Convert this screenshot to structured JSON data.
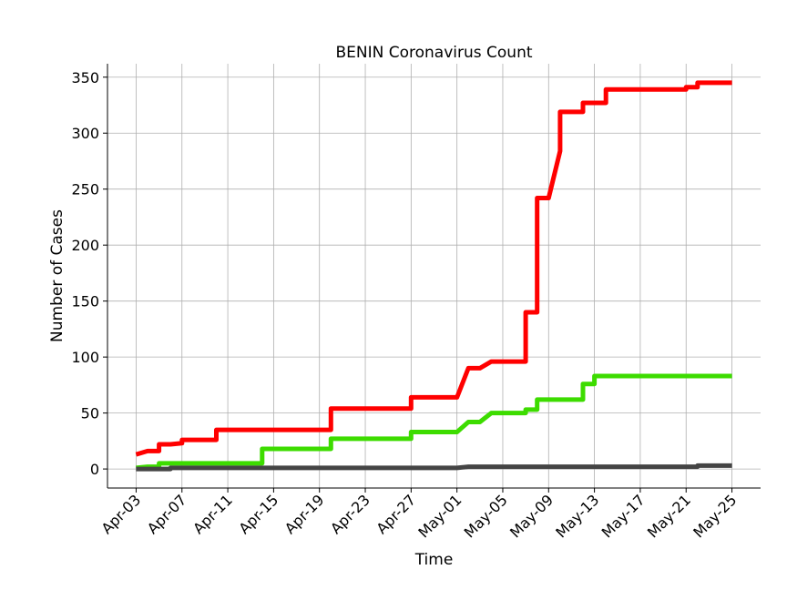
{
  "chart_data": {
    "type": "line",
    "title": "BENIN Coronavirus Count",
    "xlabel": "Time",
    "ylabel": "Number of Cases",
    "x_tick_labels": [
      "Apr-03",
      "Apr-07",
      "Apr-11",
      "Apr-15",
      "Apr-19",
      "Apr-23",
      "Apr-27",
      "May-01",
      "May-05",
      "May-09",
      "May-13",
      "May-17",
      "May-21",
      "May-25"
    ],
    "y_ticks": [
      0,
      50,
      100,
      150,
      200,
      250,
      300,
      350
    ],
    "xlim_days": [
      -2.5,
      54.5
    ],
    "ylim": [
      -17,
      362
    ],
    "grid": true,
    "series": [
      {
        "color": "#ff0000",
        "points": [
          [
            0,
            13
          ],
          [
            1,
            16
          ],
          [
            2,
            16
          ],
          [
            2,
            22
          ],
          [
            3,
            22
          ],
          [
            4,
            23
          ],
          [
            4,
            26
          ],
          [
            7,
            26
          ],
          [
            7,
            35
          ],
          [
            17,
            35
          ],
          [
            17,
            54
          ],
          [
            24,
            54
          ],
          [
            24,
            64
          ],
          [
            28,
            64
          ],
          [
            29,
            90
          ],
          [
            30,
            90
          ],
          [
            31,
            96
          ],
          [
            34,
            96
          ],
          [
            34,
            140
          ],
          [
            35,
            140
          ],
          [
            35,
            242
          ],
          [
            36,
            242
          ],
          [
            37,
            284
          ],
          [
            37,
            319
          ],
          [
            39,
            319
          ],
          [
            39,
            327
          ],
          [
            41,
            327
          ],
          [
            41,
            339
          ],
          [
            48,
            339
          ],
          [
            48,
            341
          ],
          [
            49,
            341
          ],
          [
            49,
            345
          ],
          [
            52,
            345
          ]
        ]
      },
      {
        "color": "#3ddc00",
        "points": [
          [
            0,
            1
          ],
          [
            1,
            2
          ],
          [
            2,
            2
          ],
          [
            2,
            5
          ],
          [
            11,
            5
          ],
          [
            11,
            18
          ],
          [
            17,
            18
          ],
          [
            17,
            27
          ],
          [
            24,
            27
          ],
          [
            24,
            33
          ],
          [
            28,
            33
          ],
          [
            29,
            42
          ],
          [
            30,
            42
          ],
          [
            31,
            50
          ],
          [
            34,
            50
          ],
          [
            34,
            53
          ],
          [
            35,
            53
          ],
          [
            35,
            62
          ],
          [
            39,
            62
          ],
          [
            39,
            76
          ],
          [
            40,
            76
          ],
          [
            40,
            83
          ],
          [
            52,
            83
          ]
        ]
      },
      {
        "color": "#444444",
        "points": [
          [
            0,
            0
          ],
          [
            3,
            0
          ],
          [
            3,
            1
          ],
          [
            28,
            1
          ],
          [
            29,
            2
          ],
          [
            49,
            2
          ],
          [
            49,
            3
          ],
          [
            52,
            3
          ]
        ]
      }
    ]
  }
}
